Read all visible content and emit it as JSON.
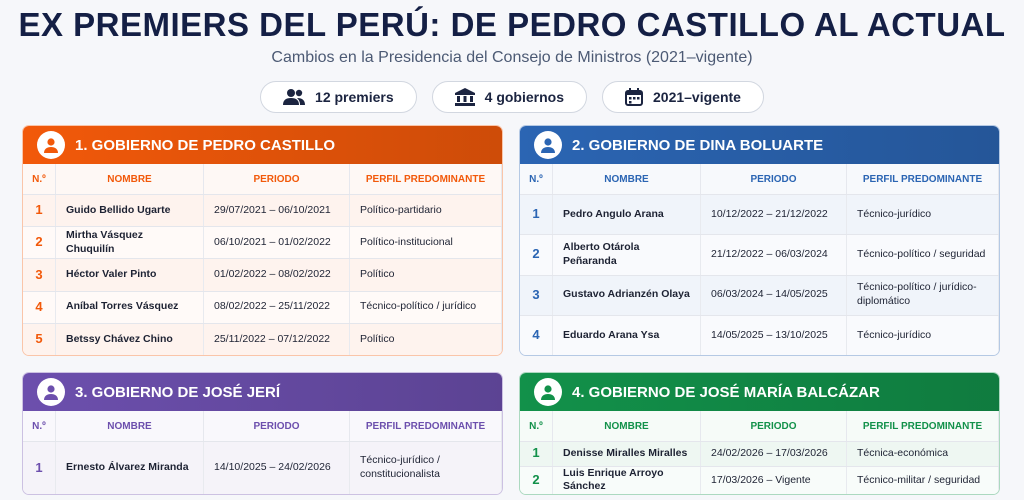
{
  "header": {
    "title": "EX PREMIERS DEL PERÚ: DE PEDRO CASTILLO AL ACTUAL",
    "subtitle": "Cambios en la Presidencia del Consejo de Ministros (2021–vigente)",
    "stats": [
      "12 premiers",
      "4 gobiernos",
      "2021–vigente"
    ]
  },
  "panels": [
    {
      "title": "1. GOBIERNO DE PEDRO CASTILLO",
      "color": "#f2590a",
      "columns": [
        "N.º",
        "NOMBRE",
        "PERIODO",
        "PERFIL PREDOMINANTE"
      ],
      "rows": [
        [
          "1",
          "Guido Bellido Ugarte",
          "29/07/2021 – 06/10/2021",
          "Político-partidario"
        ],
        [
          "2",
          "Mirtha Vásquez Chuquilín",
          "06/10/2021 – 01/02/2022",
          "Político-institucional"
        ],
        [
          "3",
          "Héctor Valer Pinto",
          "01/02/2022 – 08/02/2022",
          "Político"
        ],
        [
          "4",
          "Aníbal Torres Vásquez",
          "08/02/2022 – 25/11/2022",
          "Técnico-político / jurídico"
        ],
        [
          "5",
          "Betssy Chávez Chino",
          "25/11/2022 – 07/12/2022",
          "Político"
        ]
      ]
    },
    {
      "title": "2. GOBIERNO DE DINA BOLUARTE",
      "color": "#2b65b3",
      "columns": [
        "N.º",
        "NOMBRE",
        "PERIODO",
        "PERFIL PREDOMINANTE"
      ],
      "rows": [
        [
          "1",
          "Pedro Angulo Arana",
          "10/12/2022 – 21/12/2022",
          "Técnico-jurídico"
        ],
        [
          "2",
          "Alberto Otárola Peñaranda",
          "21/12/2022 – 06/03/2024",
          "Técnico-político / seguridad"
        ],
        [
          "3",
          "Gustavo Adrianzén Olaya",
          "06/03/2024 – 14/05/2025",
          "Técnico-político / jurídico-diplomático"
        ],
        [
          "4",
          "Eduardo Arana Ysa",
          "14/05/2025 – 13/10/2025",
          "Técnico-jurídico"
        ]
      ]
    },
    {
      "title": "3. GOBIERNO DE JOSÉ JERÍ",
      "color": "#6c4fad",
      "columns": [
        "N.º",
        "NOMBRE",
        "PERIODO",
        "PERFIL PREDOMINANTE"
      ],
      "rows": [
        [
          "1",
          "Ernesto Álvarez Miranda",
          "14/10/2025 – 24/02/2026",
          "Técnico-jurídico / constitucionalista"
        ]
      ]
    },
    {
      "title": "4. GOBIERNO DE JOSÉ MARÍA BALCÁZAR",
      "color": "#12914a",
      "columns": [
        "N.º",
        "NOMBRE",
        "PERIODO",
        "PERFIL PREDOMINANTE"
      ],
      "rows": [
        [
          "1",
          "Denisse Miralles Miralles",
          "24/02/2026 – 17/03/2026",
          "Técnica-económica"
        ],
        [
          "2",
          "Luis Enrique Arroyo Sánchez",
          "17/03/2026 – Vigente",
          "Técnico-militar / seguridad"
        ]
      ]
    }
  ]
}
